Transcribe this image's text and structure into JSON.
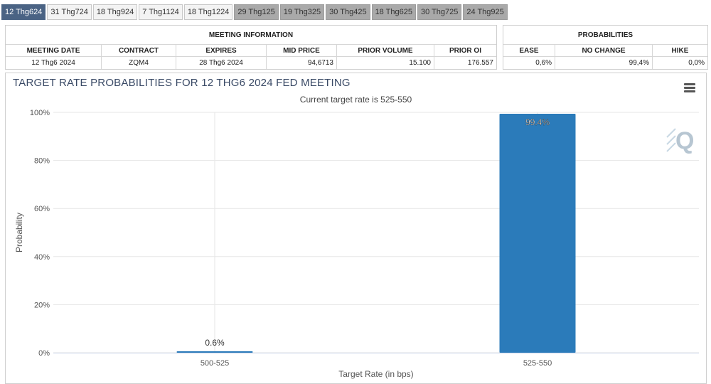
{
  "tabs": [
    {
      "label": "12 Thg624",
      "state": "active"
    },
    {
      "label": "31 Thg724",
      "state": "normal"
    },
    {
      "label": "18 Thg924",
      "state": "normal"
    },
    {
      "label": "7 Thg1124",
      "state": "normal"
    },
    {
      "label": "18 Thg1224",
      "state": "normal"
    },
    {
      "label": "29 Thg125",
      "state": "gray"
    },
    {
      "label": "19 Thg325",
      "state": "gray"
    },
    {
      "label": "30 Thg425",
      "state": "gray"
    },
    {
      "label": "18 Thg625",
      "state": "gray"
    },
    {
      "label": "30 Thg725",
      "state": "gray"
    },
    {
      "label": "24 Thg925",
      "state": "gray"
    }
  ],
  "meeting_info": {
    "heading": "MEETING INFORMATION",
    "columns": [
      "MEETING DATE",
      "CONTRACT",
      "EXPIRES",
      "MID PRICE",
      "PRIOR VOLUME",
      "PRIOR OI"
    ],
    "row": {
      "meeting_date": "12 Thg6 2024",
      "contract": "ZQM4",
      "expires": "28 Thg6 2024",
      "mid_price": "94,6713",
      "prior_volume": "15.100",
      "prior_oi": "176.557"
    }
  },
  "probabilities": {
    "heading": "PROBABILITIES",
    "columns": [
      "EASE",
      "NO CHANGE",
      "HIKE"
    ],
    "row": {
      "ease": "0,6%",
      "no_change": "99,4%",
      "hike": "0,0%"
    }
  },
  "chart": {
    "title": "TARGET RATE PROBABILITIES FOR 12 THG6 2024 FED MEETING",
    "subtitle": "Current target rate is 525-550"
  },
  "colors": {
    "bar": "#2b7bba",
    "grid": "#e6e6e6",
    "active_tab": "#4a6384"
  },
  "icons": {
    "menu": "hamburger-menu-icon",
    "logo": "q-logo-icon"
  },
  "chart_data": {
    "type": "bar",
    "title": "TARGET RATE PROBABILITIES FOR 12 THG6 2024 FED MEETING",
    "subtitle": "Current target rate is 525-550",
    "xlabel": "Target Rate (in bps)",
    "ylabel": "Probability",
    "categories": [
      "500-525",
      "525-550"
    ],
    "values": [
      0.6,
      99.4
    ],
    "data_labels": [
      "0.6%",
      "99.4%"
    ],
    "ylim": [
      0,
      100
    ],
    "yticks": [
      0,
      20,
      40,
      60,
      80,
      100
    ],
    "ytick_labels": [
      "0%",
      "20%",
      "40%",
      "60%",
      "80%",
      "100%"
    ],
    "grid": true
  }
}
